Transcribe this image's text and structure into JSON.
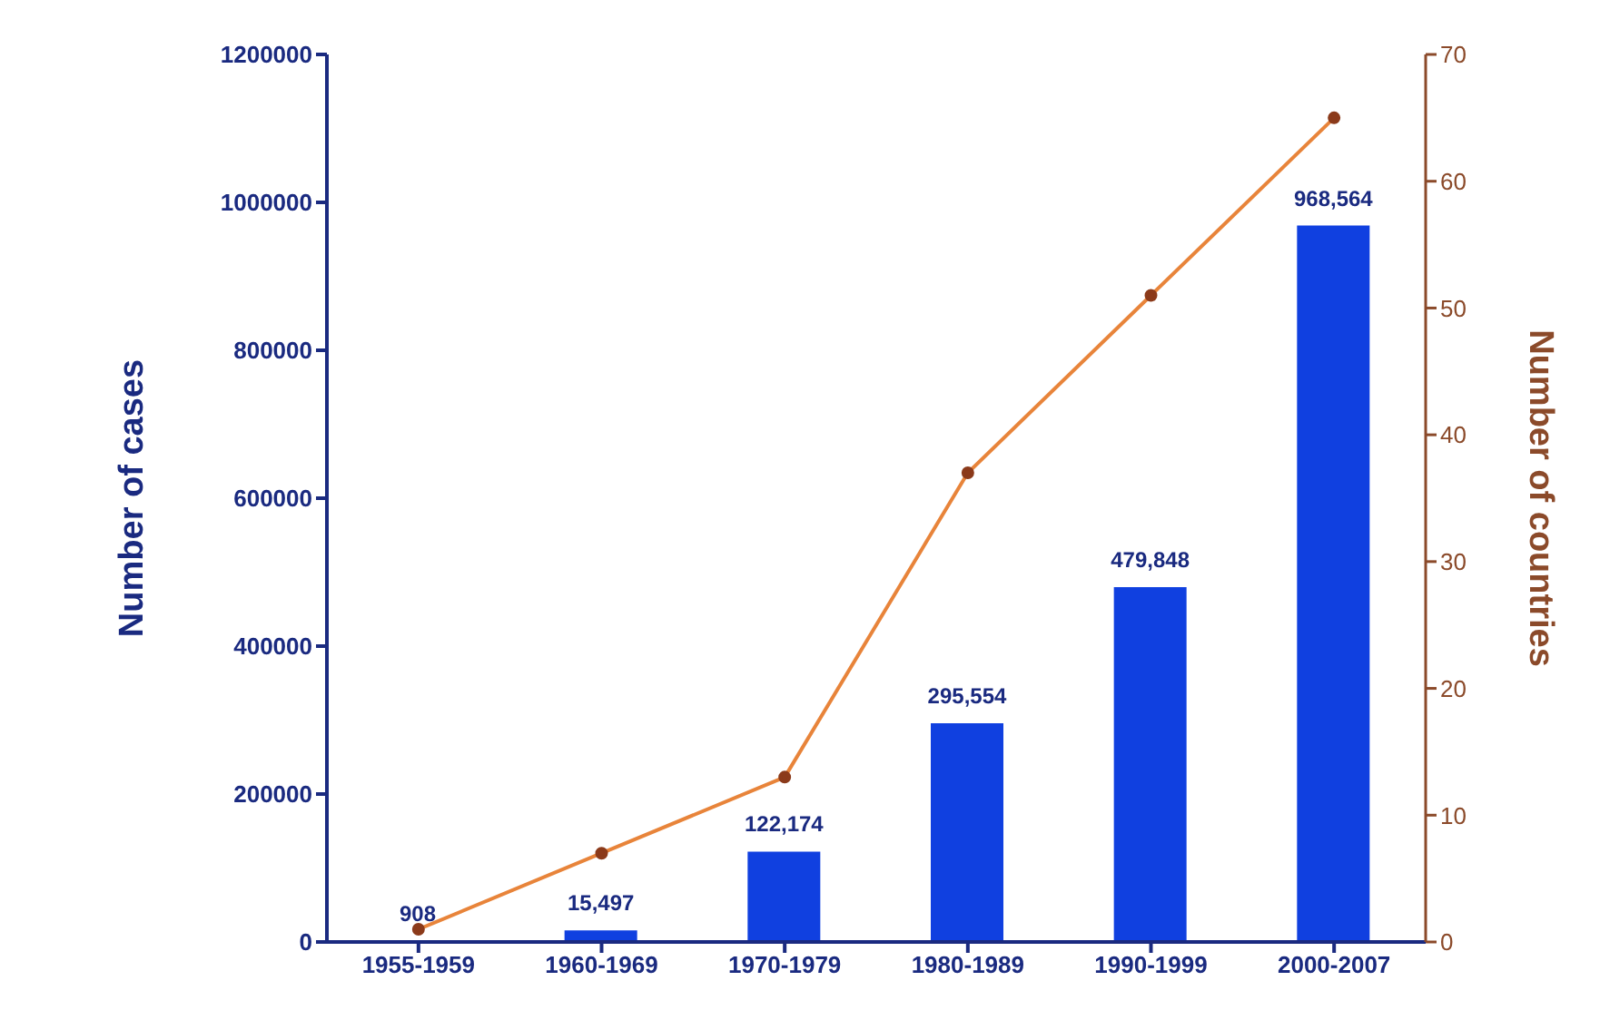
{
  "chart_data": {
    "type": "bar",
    "categories": [
      "1955-1959",
      "1960-1969",
      "1970-1979",
      "1980-1989",
      "1990-1999",
      "2000-2007"
    ],
    "series": [
      {
        "color": "#1040e0",
        "values": [
          908,
          15497,
          122174,
          295554,
          479848,
          968564
        ],
        "value_labels": [
          "908",
          "15,497",
          "122,174",
          "295,554",
          "479,848",
          "968,564"
        ]
      },
      {
        "type": "line",
        "axis": "y2",
        "color": "#e8843a",
        "marker": "circle",
        "values": [
          1,
          7,
          13,
          37,
          51,
          65
        ]
      }
    ],
    "ylabel": "Number of cases",
    "y2label": "Number of countries",
    "ylim": [
      0,
      1200000
    ],
    "yticks": [
      0,
      200000,
      400000,
      600000,
      800000,
      1000000,
      1200000
    ],
    "y2lim": [
      0,
      70
    ],
    "y2ticks": [
      0,
      10,
      20,
      30,
      40,
      50,
      60,
      70
    ],
    "grid": false,
    "legend": false
  }
}
